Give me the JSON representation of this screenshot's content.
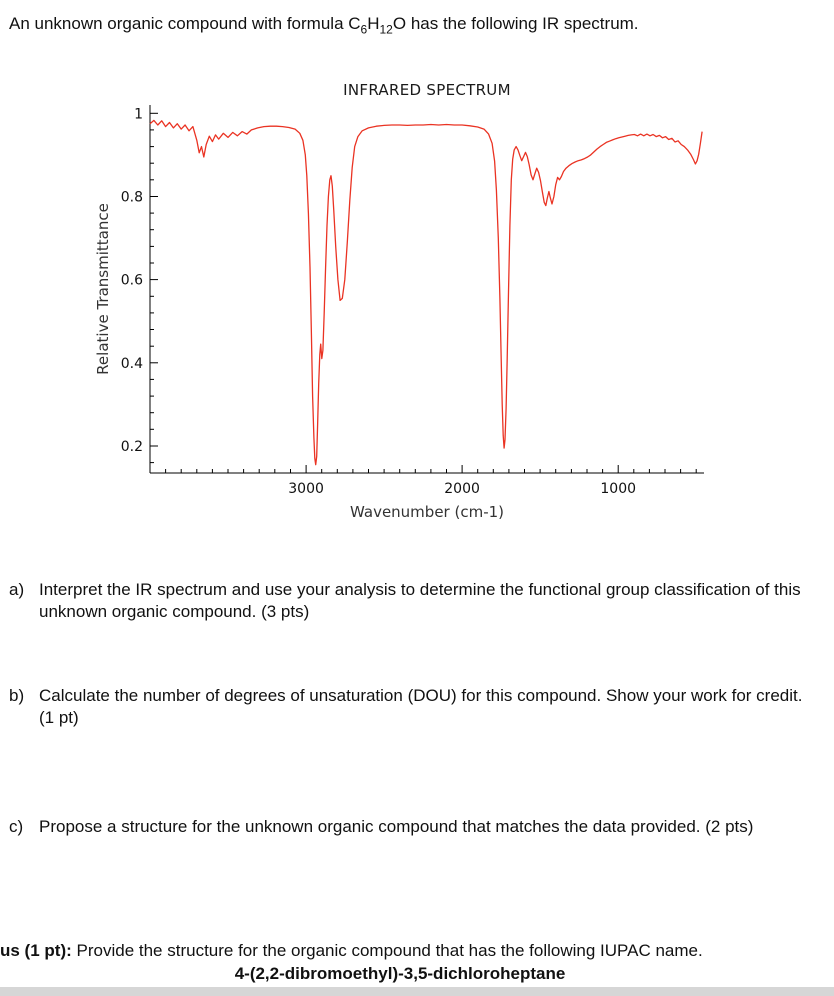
{
  "page": {
    "intro": {
      "prefix": "An unknown organic compound with formula ",
      "f_c": "C",
      "f_c_sub": "6",
      "f_h": "H",
      "f_h_sub": "12",
      "f_o": "O",
      "suffix": " has the following IR spectrum."
    }
  },
  "chart_data": {
    "type": "line",
    "title": "INFRARED SPECTRUM",
    "xlabel": "Wavenumber (cm-1)",
    "ylabel": "Relative Transmittance",
    "x_ticks": [
      3000,
      2000,
      1000
    ],
    "y_ticks": [
      0.2,
      0.4,
      0.6,
      0.8,
      1
    ],
    "x_minor_step": 100,
    "y_minor_step": 0.04,
    "xlim": [
      4000,
      450
    ],
    "ylim": [
      0.135,
      1.02
    ],
    "line_color": "#ea3323",
    "axis_color": "#000000",
    "points": [
      [
        4000,
        0.975
      ],
      [
        3975,
        0.983
      ],
      [
        3950,
        0.972
      ],
      [
        3925,
        0.982
      ],
      [
        3900,
        0.968
      ],
      [
        3875,
        0.978
      ],
      [
        3850,
        0.965
      ],
      [
        3825,
        0.975
      ],
      [
        3800,
        0.962
      ],
      [
        3775,
        0.972
      ],
      [
        3750,
        0.958
      ],
      [
        3725,
        0.968
      ],
      [
        3700,
        0.935
      ],
      [
        3685,
        0.905
      ],
      [
        3670,
        0.92
      ],
      [
        3655,
        0.895
      ],
      [
        3640,
        0.925
      ],
      [
        3620,
        0.945
      ],
      [
        3600,
        0.932
      ],
      [
        3580,
        0.948
      ],
      [
        3560,
        0.938
      ],
      [
        3530,
        0.952
      ],
      [
        3500,
        0.942
      ],
      [
        3470,
        0.954
      ],
      [
        3440,
        0.946
      ],
      [
        3410,
        0.956
      ],
      [
        3380,
        0.95
      ],
      [
        3350,
        0.96
      ],
      [
        3310,
        0.965
      ],
      [
        3270,
        0.968
      ],
      [
        3230,
        0.969
      ],
      [
        3190,
        0.969
      ],
      [
        3150,
        0.968
      ],
      [
        3110,
        0.966
      ],
      [
        3070,
        0.962
      ],
      [
        3040,
        0.952
      ],
      [
        3020,
        0.935
      ],
      [
        3005,
        0.9
      ],
      [
        2995,
        0.85
      ],
      [
        2985,
        0.76
      ],
      [
        2975,
        0.63
      ],
      [
        2966,
        0.47
      ],
      [
        2958,
        0.32
      ],
      [
        2950,
        0.22
      ],
      [
        2944,
        0.17
      ],
      [
        2938,
        0.155
      ],
      [
        2932,
        0.175
      ],
      [
        2926,
        0.25
      ],
      [
        2919,
        0.35
      ],
      [
        2912,
        0.42
      ],
      [
        2906,
        0.445
      ],
      [
        2899,
        0.41
      ],
      [
        2892,
        0.43
      ],
      [
        2884,
        0.52
      ],
      [
        2875,
        0.63
      ],
      [
        2866,
        0.73
      ],
      [
        2857,
        0.8
      ],
      [
        2848,
        0.84
      ],
      [
        2840,
        0.85
      ],
      [
        2832,
        0.825
      ],
      [
        2822,
        0.765
      ],
      [
        2810,
        0.68
      ],
      [
        2796,
        0.6
      ],
      [
        2782,
        0.55
      ],
      [
        2768,
        0.555
      ],
      [
        2752,
        0.6
      ],
      [
        2736,
        0.69
      ],
      [
        2720,
        0.79
      ],
      [
        2704,
        0.87
      ],
      [
        2688,
        0.92
      ],
      [
        2668,
        0.944
      ],
      [
        2640,
        0.958
      ],
      [
        2600,
        0.965
      ],
      [
        2550,
        0.969
      ],
      [
        2500,
        0.971
      ],
      [
        2450,
        0.972
      ],
      [
        2400,
        0.972
      ],
      [
        2350,
        0.971
      ],
      [
        2300,
        0.972
      ],
      [
        2250,
        0.972
      ],
      [
        2200,
        0.973
      ],
      [
        2150,
        0.972
      ],
      [
        2100,
        0.973
      ],
      [
        2050,
        0.972
      ],
      [
        2000,
        0.972
      ],
      [
        1950,
        0.97
      ],
      [
        1900,
        0.967
      ],
      [
        1860,
        0.962
      ],
      [
        1830,
        0.95
      ],
      [
        1808,
        0.928
      ],
      [
        1792,
        0.885
      ],
      [
        1780,
        0.815
      ],
      [
        1768,
        0.7
      ],
      [
        1758,
        0.555
      ],
      [
        1750,
        0.42
      ],
      [
        1743,
        0.3
      ],
      [
        1737,
        0.225
      ],
      [
        1731,
        0.195
      ],
      [
        1725,
        0.215
      ],
      [
        1718,
        0.29
      ],
      [
        1711,
        0.41
      ],
      [
        1703,
        0.57
      ],
      [
        1694,
        0.73
      ],
      [
        1685,
        0.84
      ],
      [
        1676,
        0.89
      ],
      [
        1666,
        0.912
      ],
      [
        1654,
        0.92
      ],
      [
        1642,
        0.912
      ],
      [
        1630,
        0.898
      ],
      [
        1618,
        0.886
      ],
      [
        1606,
        0.896
      ],
      [
        1594,
        0.906
      ],
      [
        1582,
        0.896
      ],
      [
        1570,
        0.876
      ],
      [
        1558,
        0.852
      ],
      [
        1546,
        0.84
      ],
      [
        1534,
        0.854
      ],
      [
        1522,
        0.868
      ],
      [
        1510,
        0.858
      ],
      [
        1498,
        0.838
      ],
      [
        1486,
        0.812
      ],
      [
        1474,
        0.786
      ],
      [
        1464,
        0.778
      ],
      [
        1454,
        0.796
      ],
      [
        1444,
        0.812
      ],
      [
        1434,
        0.796
      ],
      [
        1424,
        0.782
      ],
      [
        1412,
        0.8
      ],
      [
        1400,
        0.828
      ],
      [
        1388,
        0.846
      ],
      [
        1376,
        0.84
      ],
      [
        1364,
        0.848
      ],
      [
        1350,
        0.86
      ],
      [
        1334,
        0.868
      ],
      [
        1316,
        0.874
      ],
      [
        1296,
        0.879
      ],
      [
        1276,
        0.883
      ],
      [
        1256,
        0.886
      ],
      [
        1236,
        0.888
      ],
      [
        1216,
        0.891
      ],
      [
        1196,
        0.895
      ],
      [
        1176,
        0.9
      ],
      [
        1156,
        0.907
      ],
      [
        1136,
        0.914
      ],
      [
        1116,
        0.92
      ],
      [
        1096,
        0.925
      ],
      [
        1076,
        0.93
      ],
      [
        1056,
        0.933
      ],
      [
        1036,
        0.936
      ],
      [
        1016,
        0.939
      ],
      [
        996,
        0.941
      ],
      [
        976,
        0.943
      ],
      [
        956,
        0.945
      ],
      [
        936,
        0.947
      ],
      [
        916,
        0.948
      ],
      [
        896,
        0.949
      ],
      [
        876,
        0.946
      ],
      [
        856,
        0.95
      ],
      [
        836,
        0.946
      ],
      [
        816,
        0.95
      ],
      [
        796,
        0.946
      ],
      [
        776,
        0.949
      ],
      [
        756,
        0.944
      ],
      [
        736,
        0.947
      ],
      [
        716,
        0.941
      ],
      [
        696,
        0.944
      ],
      [
        676,
        0.937
      ],
      [
        656,
        0.94
      ],
      [
        636,
        0.931
      ],
      [
        616,
        0.934
      ],
      [
        596,
        0.925
      ],
      [
        576,
        0.92
      ],
      [
        556,
        0.912
      ],
      [
        536,
        0.902
      ],
      [
        518,
        0.889
      ],
      [
        505,
        0.878
      ],
      [
        494,
        0.886
      ],
      [
        484,
        0.902
      ],
      [
        473,
        0.928
      ],
      [
        462,
        0.956
      ]
    ]
  },
  "questions": [
    {
      "label": "a)",
      "text": "Interpret the IR spectrum and use your analysis to determine the functional group classification of this unknown organic compound. (3 pts)"
    },
    {
      "label": "b)",
      "text": "Calculate the number of degrees of unsaturation (DOU) for this compound. Show your work for credit. (1 pt)"
    },
    {
      "label": "c)",
      "text": "Propose a structure for the unknown organic compound that matches the data provided. (2 pts)"
    }
  ],
  "bonus": {
    "bold_prefix": "us (1 pt):",
    "text": " Provide the structure for the organic compound that has the following IUPAC name.",
    "compound": "4-(2,2-dibromoethyl)-3,5-dichloroheptane"
  }
}
